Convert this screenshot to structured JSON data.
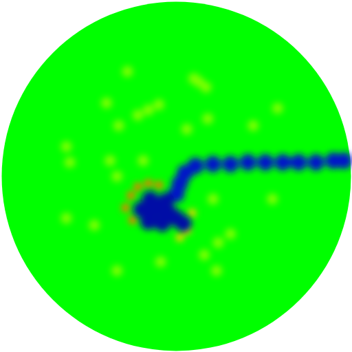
{
  "chart_data": {
    "type": "heatmap",
    "xlim": [
      -1,
      1
    ],
    "ylim": [
      -1,
      1
    ],
    "tick_labels": false,
    "colorbar_range": [
      -1,
      1
    ],
    "field_value": 0,
    "points": [
      {
        "x": -0.28,
        "y": 0.6,
        "value": 0.25
      },
      {
        "x": 0.13,
        "y": 0.54,
        "value": 0.25
      },
      {
        "x": 0.17,
        "y": 0.51,
        "value": 0.25
      },
      {
        "x": 0.1,
        "y": 0.56,
        "value": 0.25
      },
      {
        "x": -0.4,
        "y": 0.42,
        "value": 0.25
      },
      {
        "x": -0.16,
        "y": 0.38,
        "value": 0.25
      },
      {
        "x": -0.1,
        "y": 0.41,
        "value": 0.25
      },
      {
        "x": -0.22,
        "y": 0.35,
        "value": 0.25
      },
      {
        "x": 0.58,
        "y": 0.39,
        "value": 0.25
      },
      {
        "x": 0.18,
        "y": 0.33,
        "value": 0.25
      },
      {
        "x": 0.06,
        "y": 0.27,
        "value": 0.25
      },
      {
        "x": 0.44,
        "y": 0.29,
        "value": 0.25
      },
      {
        "x": -0.33,
        "y": 0.29,
        "value": 0.25
      },
      {
        "x": -0.63,
        "y": 0.17,
        "value": 0.25
      },
      {
        "x": -0.61,
        "y": 0.08,
        "value": 0.25
      },
      {
        "x": -0.38,
        "y": 0.09,
        "value": 0.25
      },
      {
        "x": -0.19,
        "y": 0.09,
        "value": 0.25
      },
      {
        "x": -0.34,
        "y": 0.0,
        "value": 0.25
      },
      {
        "x": -0.63,
        "y": -0.24,
        "value": 0.25
      },
      {
        "x": -0.47,
        "y": -0.28,
        "value": 0.25
      },
      {
        "x": 0.21,
        "y": -0.13,
        "value": 0.25
      },
      {
        "x": 0.55,
        "y": -0.13,
        "value": 0.25
      },
      {
        "x": 0.31,
        "y": -0.33,
        "value": 0.25
      },
      {
        "x": 0.16,
        "y": -0.45,
        "value": 0.25
      },
      {
        "x": 0.24,
        "y": -0.38,
        "value": 0.25
      },
      {
        "x": -0.09,
        "y": -0.49,
        "value": 0.25
      },
      {
        "x": -0.34,
        "y": -0.54,
        "value": 0.25
      },
      {
        "x": 0.23,
        "y": -0.54,
        "value": 0.25
      },
      {
        "x": -0.26,
        "y": -0.11,
        "value": 0.8
      },
      {
        "x": -0.29,
        "y": -0.18,
        "value": 0.8
      },
      {
        "x": -0.25,
        "y": -0.25,
        "value": 0.8
      },
      {
        "x": -0.22,
        "y": -0.06,
        "value": 0.8
      },
      {
        "x": -0.16,
        "y": -0.04,
        "value": 0.8
      },
      {
        "x": -0.1,
        "y": -0.05,
        "value": 0.8
      },
      {
        "x": 0.09,
        "y": -0.21,
        "value": 0.6
      },
      {
        "x": 0.06,
        "y": -0.31,
        "value": 0.6
      },
      {
        "x": 0.02,
        "y": -0.35,
        "value": 0.6
      },
      {
        "x": 0.0,
        "y": -0.1,
        "value": -0.75
      },
      {
        "x": 0.02,
        "y": -0.04,
        "value": -0.75
      },
      {
        "x": 0.05,
        "y": 0.02,
        "value": -0.75
      },
      {
        "x": 0.11,
        "y": 0.06,
        "value": -0.75
      },
      {
        "x": 0.21,
        "y": 0.07,
        "value": -0.75
      },
      {
        "x": 0.31,
        "y": 0.07,
        "value": -0.75
      },
      {
        "x": 0.41,
        "y": 0.08,
        "value": -0.75
      },
      {
        "x": 0.51,
        "y": 0.08,
        "value": -0.75
      },
      {
        "x": 0.61,
        "y": 0.08,
        "value": -0.75
      },
      {
        "x": 0.7,
        "y": 0.08,
        "value": -0.75
      },
      {
        "x": 0.8,
        "y": 0.08,
        "value": -0.75
      },
      {
        "x": 0.9,
        "y": 0.09,
        "value": -0.75
      },
      {
        "x": 0.96,
        "y": 0.09,
        "value": -0.75
      },
      {
        "x": -0.2,
        "y": -0.19,
        "value": -0.9
      },
      {
        "x": -0.12,
        "y": -0.19,
        "value": -0.9
      },
      {
        "x": -0.04,
        "y": -0.21,
        "value": -0.9
      },
      {
        "x": -0.16,
        "y": -0.26,
        "value": -0.9
      },
      {
        "x": -0.08,
        "y": -0.27,
        "value": -0.9
      },
      {
        "x": 0.0,
        "y": -0.24,
        "value": -0.9
      },
      {
        "x": -0.15,
        "y": -0.13,
        "value": -0.9
      },
      {
        "x": -0.06,
        "y": -0.14,
        "value": -0.9
      },
      {
        "x": 0.04,
        "y": -0.27,
        "value": -0.9
      }
    ]
  }
}
